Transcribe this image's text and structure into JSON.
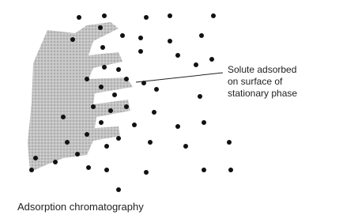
{
  "annotation": {
    "lines": [
      "Solute adsorbed",
      "on surface of",
      "stationary phase"
    ]
  },
  "caption": "Adsorption chromatography"
}
